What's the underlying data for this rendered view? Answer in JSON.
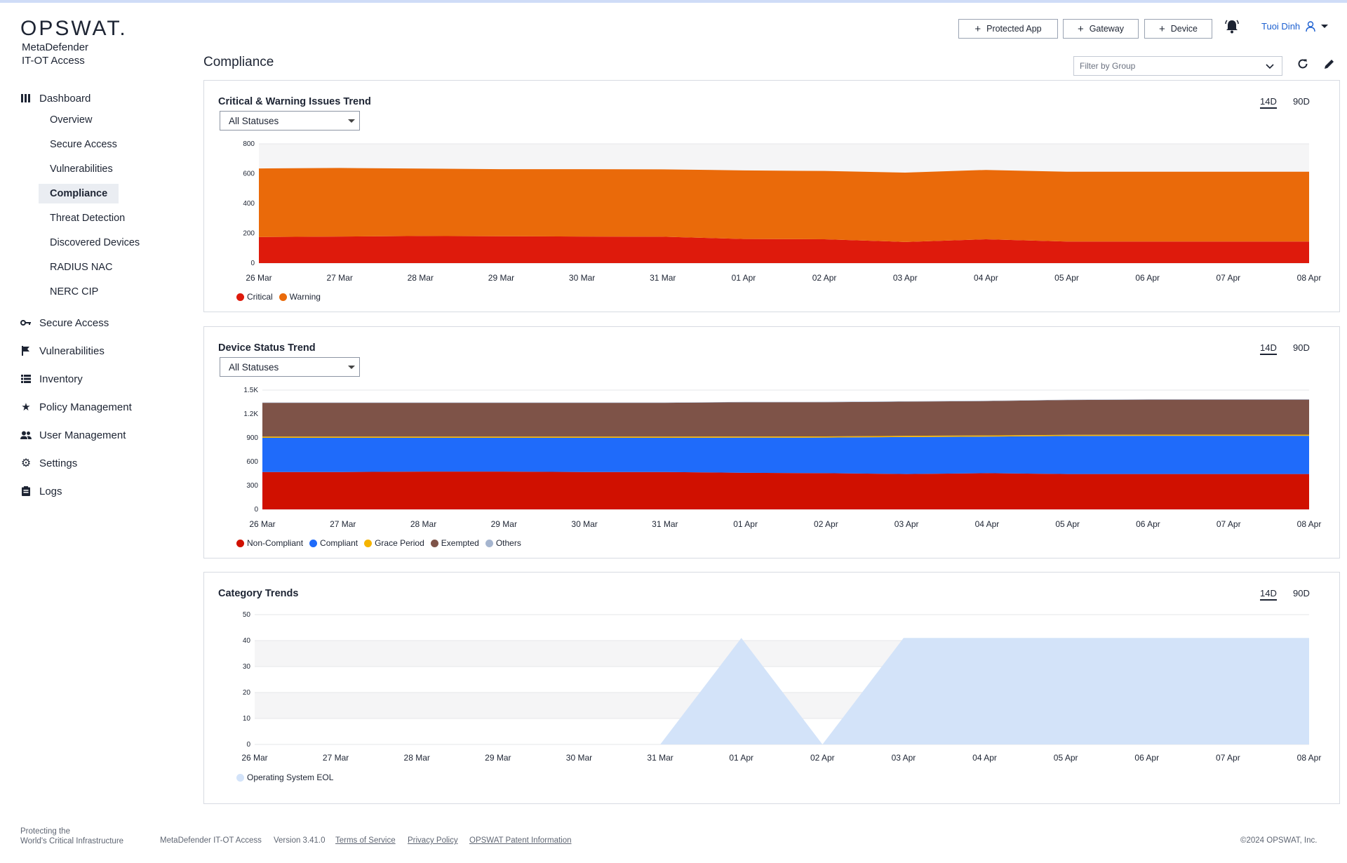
{
  "brand": {
    "logo": "OPSWAT.",
    "product_line1": "MetaDefender",
    "product_line2": "IT-OT Access"
  },
  "sidebar": {
    "dashboard": {
      "label": "Dashboard",
      "icon": "dashboard-icon",
      "children": [
        {
          "label": "Overview"
        },
        {
          "label": "Secure Access"
        },
        {
          "label": "Vulnerabilities"
        },
        {
          "label": "Compliance",
          "active": true
        },
        {
          "label": "Threat Detection"
        },
        {
          "label": "Discovered Devices"
        },
        {
          "label": "RADIUS NAC"
        },
        {
          "label": "NERC CIP"
        }
      ]
    },
    "items": [
      {
        "label": "Secure Access",
        "icon": "key-icon"
      },
      {
        "label": "Vulnerabilities",
        "icon": "flag-icon"
      },
      {
        "label": "Inventory",
        "icon": "list-icon"
      },
      {
        "label": "Policy Management",
        "icon": "star-icon"
      },
      {
        "label": "User Management",
        "icon": "users-icon"
      },
      {
        "label": "Settings",
        "icon": "gear-icon"
      },
      {
        "label": "Logs",
        "icon": "clipboard-icon"
      }
    ]
  },
  "header": {
    "buttons": [
      {
        "label": "Protected App"
      },
      {
        "label": "Gateway"
      },
      {
        "label": "Device"
      }
    ],
    "user": "Tuoi Dinh"
  },
  "page": {
    "title": "Compliance",
    "filter_placeholder": "Filter by Group"
  },
  "panels": {
    "issues": {
      "title": "Critical & Warning Issues Trend",
      "range_14": "14D",
      "range_90": "90D",
      "select": "All Statuses"
    },
    "devices": {
      "title": "Device Status Trend",
      "range_14": "14D",
      "range_90": "90D",
      "select": "All Statuses"
    },
    "category": {
      "title": "Category Trends",
      "range_14": "14D",
      "range_90": "90D"
    }
  },
  "chart_data": [
    {
      "type": "area",
      "stacked": true,
      "x": [
        "26 Mar",
        "27 Mar",
        "28 Mar",
        "29 Mar",
        "30 Mar",
        "31 Mar",
        "01 Apr",
        "02 Apr",
        "03 Apr",
        "04 Apr",
        "05 Apr",
        "06 Apr",
        "07 Apr",
        "08 Apr"
      ],
      "ylim": [
        0,
        800
      ],
      "yticks": [
        0,
        200,
        400,
        600,
        800
      ],
      "ytick_labels": [
        "0",
        "200",
        "400",
        "600",
        "800"
      ],
      "series": [
        {
          "name": "Critical",
          "color": "#de1a0c",
          "values": [
            175,
            178,
            182,
            180,
            178,
            177,
            162,
            160,
            142,
            160,
            145,
            145,
            145,
            145
          ]
        },
        {
          "name": "Warning",
          "color": "#ea6a0a",
          "values": [
            460,
            460,
            452,
            450,
            452,
            452,
            460,
            458,
            465,
            465,
            468,
            468,
            468,
            468
          ]
        }
      ],
      "legend": "bottom-left",
      "grid": true
    },
    {
      "type": "area",
      "stacked": true,
      "x": [
        "26 Mar",
        "27 Mar",
        "28 Mar",
        "29 Mar",
        "30 Mar",
        "31 Mar",
        "01 Apr",
        "02 Apr",
        "03 Apr",
        "04 Apr",
        "05 Apr",
        "06 Apr",
        "07 Apr",
        "08 Apr"
      ],
      "ylim": [
        0,
        1500
      ],
      "yticks": [
        0,
        300,
        600,
        900,
        1200,
        1500
      ],
      "ytick_labels": [
        "0",
        "300",
        "600",
        "900",
        "1.2K",
        "1.5K"
      ],
      "series": [
        {
          "name": "Non-Compliant",
          "color": "#d01000",
          "values": [
            470,
            470,
            475,
            475,
            470,
            470,
            460,
            455,
            445,
            455,
            445,
            445,
            445,
            445
          ]
        },
        {
          "name": "Compliant",
          "color": "#1f6bfa",
          "values": [
            430,
            430,
            425,
            425,
            430,
            430,
            442,
            448,
            465,
            460,
            478,
            480,
            480,
            480
          ]
        },
        {
          "name": "Grace Period",
          "color": "#f5b400",
          "values": [
            15,
            15,
            15,
            15,
            15,
            15,
            15,
            15,
            15,
            15,
            15,
            15,
            15,
            15
          ]
        },
        {
          "name": "Exempted",
          "color": "#7e5348",
          "values": [
            425,
            425,
            425,
            425,
            425,
            425,
            430,
            430,
            430,
            432,
            437,
            440,
            440,
            440
          ]
        },
        {
          "name": "Others",
          "color": "#a5b5cf",
          "values": [
            5,
            5,
            5,
            5,
            5,
            5,
            5,
            5,
            5,
            5,
            5,
            5,
            5,
            5
          ]
        }
      ],
      "legend": "bottom-left",
      "grid": true
    },
    {
      "type": "area",
      "x": [
        "26 Mar",
        "27 Mar",
        "28 Mar",
        "29 Mar",
        "30 Mar",
        "31 Mar",
        "01 Apr",
        "02 Apr",
        "03 Apr",
        "04 Apr",
        "05 Apr",
        "06 Apr",
        "07 Apr",
        "08 Apr"
      ],
      "ylim": [
        0,
        50
      ],
      "yticks": [
        0,
        10,
        20,
        30,
        40,
        50
      ],
      "ytick_labels": [
        "0",
        "10",
        "20",
        "30",
        "40",
        "50"
      ],
      "series": [
        {
          "name": "Operating System EOL",
          "color": "#d3e3f9",
          "values": [
            0,
            0,
            0,
            0,
            0,
            0,
            41,
            0,
            41,
            41,
            41,
            41,
            41,
            41
          ]
        }
      ],
      "legend": "bottom-left",
      "grid": true
    }
  ],
  "footer": {
    "tagline1": "Protecting the",
    "tagline2": "World's Critical Infrastructure",
    "product": "MetaDefender IT-OT Access",
    "version": "Version 3.41.0",
    "terms": "Terms of Service",
    "privacy": "Privacy Policy",
    "patent": "OPSWAT Patent Information",
    "copyright": "©2024 OPSWAT, Inc."
  }
}
